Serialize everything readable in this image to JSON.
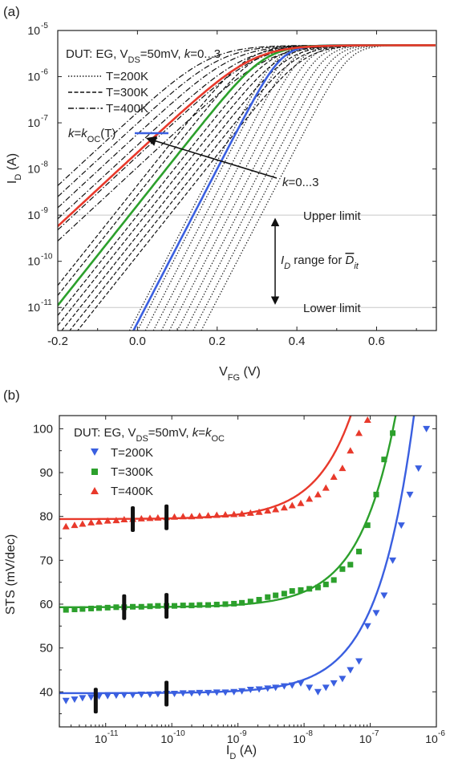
{
  "chart_data": [
    {
      "panel": "(a)",
      "type": "line",
      "x_scale": "linear",
      "y_scale": "log",
      "xlim": [
        -0.2,
        0.75
      ],
      "ylim_exp": [
        -11.5,
        -5
      ],
      "x_ticks": [
        -0.2,
        0.0,
        0.2,
        0.4,
        0.6
      ],
      "x_tick_labels": [
        "-0.2",
        "0.0",
        "0.2",
        "0.4",
        "0.6"
      ],
      "y_tick_exps": [
        -11,
        -10,
        -9,
        -8,
        -7,
        -6,
        -5
      ],
      "y_tick_labels": [
        "10",
        "10",
        "10",
        "10",
        "10",
        "10",
        "10"
      ],
      "y_tick_supers": [
        "-11",
        "-10",
        "-9",
        "-8",
        "-7",
        "-6",
        "-5"
      ],
      "legend": {
        "title_prefix": "DUT: EG, V",
        "title_sub": "DS",
        "title_mid": "=50mV, ",
        "title_k": "k",
        "title_suffix": "=0...3",
        "entries": [
          "T=200K",
          "T=300K",
          "T=400K"
        ],
        "koc_k": "k",
        "koc_eq": "=",
        "koc_k2": "k",
        "koc_sub": "OC",
        "koc_suffix": "(T)"
      },
      "annotations": {
        "arrow_label_k": "k",
        "arrow_label": "=0...3",
        "upper_limit": "Upper limit",
        "lower_limit": "Lower limit",
        "range_i": "I",
        "range_sub": "D",
        "range_text": " range for ",
        "range_d": "D",
        "range_dsub": "it"
      },
      "upper_limit_exp": -9,
      "lower_limit_exp": -11,
      "series": [
        {
          "name": "T=200K",
          "style": "dotted",
          "color": "#111111",
          "curves": [
            {
              "ss": 0.06,
              "x0": 0.13,
              "k": 0
            },
            {
              "ss": 0.06,
              "x0": 0.15,
              "k": 0
            },
            {
              "ss": 0.06,
              "x0": 0.17,
              "k": 0
            },
            {
              "ss": 0.06,
              "x0": 0.19,
              "k": 0
            },
            {
              "ss": 0.06,
              "x0": 0.21,
              "k": 0
            },
            {
              "ss": 0.06,
              "x0": 0.23,
              "k": 0
            },
            {
              "ss": 0.06,
              "x0": 0.25,
              "k": 0
            },
            {
              "ss": 0.06,
              "x0": 0.27,
              "k": 0
            },
            {
              "ss": 0.06,
              "x0": 0.29,
              "k": 0
            },
            {
              "ss": 0.06,
              "x0": 0.31,
              "k": 0
            }
          ]
        },
        {
          "name": "T=300K",
          "style": "dashed",
          "color": "#111111",
          "curves": [
            {
              "ss": 0.092,
              "x0": -0.06,
              "k": 0
            },
            {
              "ss": 0.092,
              "x0": -0.04,
              "k": 0
            },
            {
              "ss": 0.092,
              "x0": -0.02,
              "k": 0
            },
            {
              "ss": 0.092,
              "x0": 0.0,
              "k": 0
            },
            {
              "ss": 0.092,
              "x0": 0.02,
              "k": 0
            },
            {
              "ss": 0.092,
              "x0": 0.04,
              "k": 0
            },
            {
              "ss": 0.092,
              "x0": 0.06,
              "k": 0
            },
            {
              "ss": 0.092,
              "x0": 0.08,
              "k": 0
            }
          ]
        },
        {
          "name": "T=400K",
          "style": "dashdot",
          "color": "#111111",
          "curves": [
            {
              "ss": 0.125,
              "x0": -0.28,
              "k": 0
            },
            {
              "ss": 0.125,
              "x0": -0.25,
              "k": 0
            },
            {
              "ss": 0.125,
              "x0": -0.22,
              "k": 0
            },
            {
              "ss": 0.125,
              "x0": -0.19,
              "k": 0
            },
            {
              "ss": 0.125,
              "x0": -0.16,
              "k": 0
            },
            {
              "ss": 0.125,
              "x0": -0.13,
              "k": 0
            }
          ]
        },
        {
          "name": "k=kOC(T)",
          "style": "solid",
          "curves": [
            {
              "ss": 0.06,
              "x0": 0.14,
              "color": "#3a5fe0"
            },
            {
              "ss": 0.092,
              "x0": -0.02,
              "color": "#2ca02c"
            },
            {
              "ss": 0.125,
              "x0": -0.17,
              "color": "#e8392b"
            }
          ]
        }
      ]
    },
    {
      "panel": "(b)",
      "type": "scatter",
      "x_scale": "log",
      "xlim_exp": [
        -11.7,
        -6
      ],
      "ylim": [
        32,
        103
      ],
      "x_tick_exps": [
        -11,
        -10,
        -9,
        -8,
        -7,
        -6
      ],
      "x_tick_labels": [
        "10",
        "10",
        "10",
        "10",
        "10",
        "10"
      ],
      "x_tick_supers": [
        "-11",
        "-10",
        "-9",
        "-8",
        "-7",
        "-6"
      ],
      "y_ticks": [
        40,
        50,
        60,
        70,
        80,
        90,
        100
      ],
      "y_tick_labels": [
        "40",
        "50",
        "60",
        "70",
        "80",
        "90",
        "100"
      ],
      "ylabel": "STS (mV/dec)",
      "xlabel_main": "I",
      "xlabel_sub": "D",
      "xlabel_unit": " (A)",
      "legend": {
        "title_prefix": "DUT: EG, V",
        "title_sub": "DS",
        "title_mid": "=50mV, ",
        "title_k": "k",
        "title_eq": "=",
        "title_k2": "k",
        "title_ksub": "OC",
        "entries": [
          "T=200K",
          "T=300K",
          "T=400K"
        ]
      },
      "series": [
        {
          "name": "T=200K",
          "marker": "triangle-down",
          "color": "#3a5fe0",
          "points": [
            [
              -11.6,
              38.0
            ],
            [
              -11.47,
              38.3
            ],
            [
              -11.35,
              38.6
            ],
            [
              -11.22,
              38.8
            ],
            [
              -11.1,
              39.0
            ],
            [
              -10.97,
              39.1
            ],
            [
              -10.84,
              39.2
            ],
            [
              -10.72,
              39.3
            ],
            [
              -10.59,
              39.3
            ],
            [
              -10.46,
              39.4
            ],
            [
              -10.33,
              39.4
            ],
            [
              -10.21,
              39.5
            ],
            [
              -10.08,
              39.6
            ],
            [
              -9.96,
              39.6
            ],
            [
              -9.83,
              39.7
            ],
            [
              -9.7,
              39.7
            ],
            [
              -9.58,
              39.8
            ],
            [
              -9.45,
              39.8
            ],
            [
              -9.32,
              39.9
            ],
            [
              -9.19,
              39.9
            ],
            [
              -9.06,
              40.0
            ],
            [
              -8.94,
              40.2
            ],
            [
              -8.81,
              40.5
            ],
            [
              -8.68,
              40.6
            ],
            [
              -8.55,
              40.8
            ],
            [
              -8.43,
              41.0
            ],
            [
              -8.3,
              41.3
            ],
            [
              -8.18,
              41.5
            ],
            [
              -8.05,
              42.0
            ],
            [
              -7.92,
              41.0
            ],
            [
              -7.79,
              40.0
            ],
            [
              -7.67,
              41.0
            ],
            [
              -7.55,
              42.0
            ],
            [
              -7.42,
              43.0
            ],
            [
              -7.3,
              45.0
            ],
            [
              -7.17,
              47.0
            ],
            [
              -7.04,
              55.0
            ],
            [
              -6.91,
              58.0
            ],
            [
              -6.79,
              62.0
            ],
            [
              -6.66,
              70.0
            ],
            [
              -6.53,
              78.0
            ],
            [
              -6.4,
              85.0
            ],
            [
              -6.27,
              91.0
            ],
            [
              -6.15,
              100.0
            ]
          ],
          "fit": {
            "base": 39.7,
            "exp0": -6.3,
            "scale": 0.55,
            "amp": 68
          }
        },
        {
          "name": "T=300K",
          "marker": "square",
          "color": "#2ca02c",
          "points": [
            [
              -11.6,
              58.7
            ],
            [
              -11.47,
              58.8
            ],
            [
              -11.35,
              58.9
            ],
            [
              -11.22,
              59.0
            ],
            [
              -11.1,
              59.1
            ],
            [
              -10.97,
              59.2
            ],
            [
              -10.84,
              59.3
            ],
            [
              -10.72,
              59.3
            ],
            [
              -10.59,
              59.4
            ],
            [
              -10.46,
              59.4
            ],
            [
              -10.33,
              59.5
            ],
            [
              -10.21,
              59.6
            ],
            [
              -10.08,
              59.6
            ],
            [
              -9.96,
              59.6
            ],
            [
              -9.83,
              59.7
            ],
            [
              -9.7,
              59.7
            ],
            [
              -9.58,
              59.8
            ],
            [
              -9.45,
              59.8
            ],
            [
              -9.32,
              59.9
            ],
            [
              -9.19,
              60.0
            ],
            [
              -9.06,
              60.1
            ],
            [
              -8.94,
              60.3
            ],
            [
              -8.81,
              60.6
            ],
            [
              -8.68,
              61.0
            ],
            [
              -8.55,
              61.6
            ],
            [
              -8.43,
              62.0
            ],
            [
              -8.3,
              62.4
            ],
            [
              -8.18,
              63.0
            ],
            [
              -8.05,
              63.2
            ],
            [
              -7.92,
              63.5
            ],
            [
              -7.79,
              63.8
            ],
            [
              -7.67,
              64.5
            ],
            [
              -7.55,
              65.5
            ],
            [
              -7.42,
              68.0
            ],
            [
              -7.3,
              69.0
            ],
            [
              -7.17,
              72.0
            ],
            [
              -7.04,
              78.0
            ],
            [
              -6.91,
              85.0
            ],
            [
              -6.79,
              93.0
            ],
            [
              -6.66,
              99.0
            ]
          ],
          "fit": {
            "base": 59.3,
            "exp0": -6.6,
            "scale": 0.55,
            "amp": 45
          }
        },
        {
          "name": "T=400K",
          "marker": "triangle-up",
          "color": "#e8392b",
          "points": [
            [
              -11.6,
              77.7
            ],
            [
              -11.47,
              78.0
            ],
            [
              -11.35,
              78.3
            ],
            [
              -11.22,
              78.6
            ],
            [
              -11.1,
              78.8
            ],
            [
              -10.97,
              79.0
            ],
            [
              -10.84,
              79.1
            ],
            [
              -10.72,
              79.3
            ],
            [
              -10.59,
              79.4
            ],
            [
              -10.46,
              79.5
            ],
            [
              -10.33,
              79.6
            ],
            [
              -10.21,
              79.7
            ],
            [
              -10.08,
              79.8
            ],
            [
              -9.96,
              79.9
            ],
            [
              -9.83,
              80.0
            ],
            [
              -9.7,
              80.0
            ],
            [
              -9.58,
              80.1
            ],
            [
              -9.45,
              80.2
            ],
            [
              -9.32,
              80.3
            ],
            [
              -9.19,
              80.4
            ],
            [
              -9.06,
              80.5
            ],
            [
              -8.94,
              80.6
            ],
            [
              -8.81,
              80.8
            ],
            [
              -8.68,
              81.0
            ],
            [
              -8.55,
              81.3
            ],
            [
              -8.43,
              81.6
            ],
            [
              -8.3,
              82.0
            ],
            [
              -8.18,
              82.5
            ],
            [
              -8.05,
              83.0
            ],
            [
              -7.92,
              84.0
            ],
            [
              -7.79,
              85.0
            ],
            [
              -7.67,
              86.5
            ],
            [
              -7.55,
              89.0
            ],
            [
              -7.42,
              91.0
            ],
            [
              -7.3,
              95.0
            ],
            [
              -7.17,
              99.0
            ],
            [
              -7.04,
              102.0
            ]
          ],
          "fit": {
            "base": 79.4,
            "exp0": -7.2,
            "scale": 0.55,
            "amp": 28
          }
        }
      ],
      "range_markers": [
        {
          "x": -11.15,
          "y": 38.0
        },
        {
          "x": -10.08,
          "y": 39.6
        },
        {
          "x": -10.72,
          "y": 59.3
        },
        {
          "x": -10.08,
          "y": 59.6
        },
        {
          "x": -10.59,
          "y": 79.4
        },
        {
          "x": -10.08,
          "y": 79.8
        }
      ]
    }
  ],
  "panel_a_label": "(a)",
  "panel_b_label": "(b)",
  "a_ylabel_main": "I",
  "a_ylabel_sub": "D",
  "a_ylabel_unit": " (A)",
  "a_xlabel_main": "V",
  "a_xlabel_sub": "FG",
  "a_xlabel_unit": " (V)",
  "colors": {
    "blue": "#3a5fe0",
    "green": "#2ca02c",
    "red": "#e8392b",
    "black": "#111111"
  }
}
